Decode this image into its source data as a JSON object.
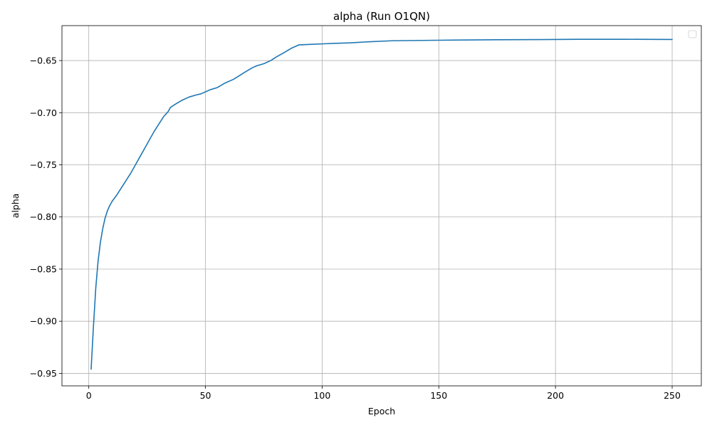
{
  "chart_data": {
    "type": "line",
    "title": "alpha (Run O1QN)",
    "xlabel": "Epoch",
    "ylabel": "alpha",
    "xlim": [
      -11.5,
      262.5
    ],
    "ylim": [
      -0.962,
      -0.6165
    ],
    "xticks": [
      0,
      50,
      100,
      150,
      200,
      250
    ],
    "xtick_labels": [
      "0",
      "50",
      "100",
      "150",
      "200",
      "250"
    ],
    "yticks": [
      -0.95,
      -0.9,
      -0.85,
      -0.8,
      -0.75,
      -0.7,
      -0.65
    ],
    "ytick_labels": [
      "−0.95",
      "−0.90",
      "−0.85",
      "−0.80",
      "−0.75",
      "−0.70",
      "−0.65"
    ],
    "grid": true,
    "legend": "top-right",
    "colors": {
      "series": "#1f77b4",
      "grid": "#b0b0b0"
    },
    "series": [
      {
        "x": [
          1,
          2,
          3,
          4,
          5,
          6,
          7,
          8,
          9,
          10,
          12,
          14,
          16,
          18,
          20,
          22,
          24,
          26,
          28,
          30,
          32,
          34,
          35,
          37,
          40,
          43,
          46,
          48,
          50,
          52,
          55,
          58,
          62,
          67,
          70,
          72,
          75,
          78,
          80,
          84,
          87,
          90,
          95,
          100,
          105,
          112,
          120,
          130,
          150,
          175,
          200,
          210,
          230,
          250
        ],
        "values": [
          -0.946,
          -0.905,
          -0.868,
          -0.842,
          -0.824,
          -0.811,
          -0.801,
          -0.794,
          -0.789,
          -0.785,
          -0.779,
          -0.772,
          -0.765,
          -0.758,
          -0.75,
          -0.742,
          -0.734,
          -0.726,
          -0.718,
          -0.711,
          -0.704,
          -0.699,
          -0.695,
          -0.692,
          -0.688,
          -0.685,
          -0.683,
          -0.682,
          -0.68,
          -0.678,
          -0.676,
          -0.672,
          -0.668,
          -0.661,
          -0.657,
          -0.655,
          -0.653,
          -0.65,
          -0.647,
          -0.642,
          -0.638,
          -0.635,
          -0.6345,
          -0.634,
          -0.6335,
          -0.633,
          -0.632,
          -0.631,
          -0.6305,
          -0.63,
          -0.6298,
          -0.6296,
          -0.6296,
          -0.6298
        ]
      }
    ]
  }
}
